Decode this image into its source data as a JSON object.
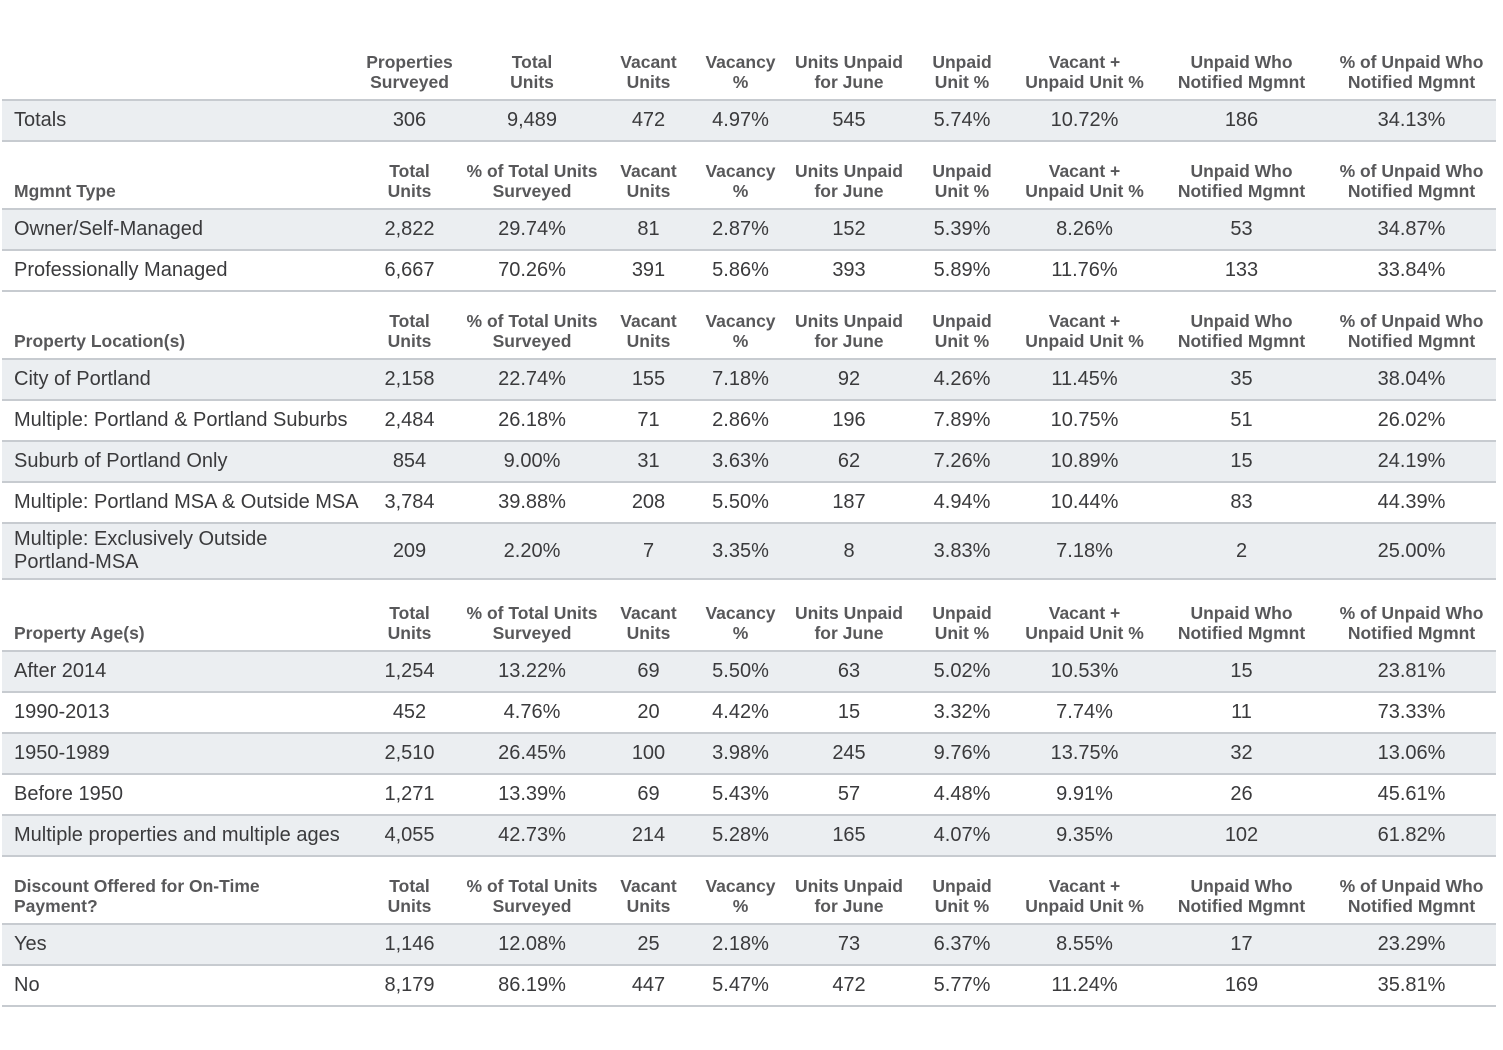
{
  "chart_data": {
    "type": "table",
    "sections": [
      {
        "label": "",
        "columns": [
          "Properties\nSurveyed",
          "Total\nUnits",
          "Vacant\nUnits",
          "Vacancy\n%",
          "Units Unpaid\nfor June",
          "Unpaid\nUnit %",
          "Vacant +\nUnpaid Unit %",
          "Unpaid Who\nNotified Mgmnt",
          "% of Unpaid Who\nNotified Mgmnt"
        ],
        "rows": [
          {
            "label": "Totals",
            "values": [
              "306",
              "9,489",
              "472",
              "4.97%",
              "545",
              "5.74%",
              "10.72%",
              "186",
              "34.13%"
            ]
          }
        ]
      },
      {
        "label": "Mgmnt Type",
        "columns": [
          "Total\nUnits",
          "% of Total Units\nSurveyed",
          "Vacant\nUnits",
          "Vacancy\n%",
          "Units Unpaid\nfor June",
          "Unpaid\nUnit %",
          "Vacant +\nUnpaid Unit %",
          "Unpaid Who\nNotified Mgmnt",
          "% of Unpaid Who\nNotified Mgmnt"
        ],
        "rows": [
          {
            "label": "Owner/Self-Managed",
            "values": [
              "2,822",
              "29.74%",
              "81",
              "2.87%",
              "152",
              "5.39%",
              "8.26%",
              "53",
              "34.87%"
            ]
          },
          {
            "label": "Professionally Managed",
            "values": [
              "6,667",
              "70.26%",
              "391",
              "5.86%",
              "393",
              "5.89%",
              "11.76%",
              "133",
              "33.84%"
            ]
          }
        ]
      },
      {
        "label": "Property Location(s)",
        "columns": [
          "Total\nUnits",
          "% of Total Units\nSurveyed",
          "Vacant\nUnits",
          "Vacancy\n%",
          "Units Unpaid\nfor June",
          "Unpaid\nUnit %",
          "Vacant +\nUnpaid Unit %",
          "Unpaid Who\nNotified Mgmnt",
          "% of Unpaid Who\nNotified Mgmnt"
        ],
        "rows": [
          {
            "label": "City of Portland",
            "values": [
              "2,158",
              "22.74%",
              "155",
              "7.18%",
              "92",
              "4.26%",
              "11.45%",
              "35",
              "38.04%"
            ]
          },
          {
            "label": "Multiple: Portland & Portland Suburbs",
            "values": [
              "2,484",
              "26.18%",
              "71",
              "2.86%",
              "196",
              "7.89%",
              "10.75%",
              "51",
              "26.02%"
            ]
          },
          {
            "label": "Suburb of Portland Only",
            "values": [
              "854",
              "9.00%",
              "31",
              "3.63%",
              "62",
              "7.26%",
              "10.89%",
              "15",
              "24.19%"
            ]
          },
          {
            "label": "Multiple: Portland MSA & Outside MSA",
            "values": [
              "3,784",
              "39.88%",
              "208",
              "5.50%",
              "187",
              "4.94%",
              "10.44%",
              "83",
              "44.39%"
            ]
          },
          {
            "label": "Multiple: Exclusively Outside\nPortland-MSA",
            "values": [
              "209",
              "2.20%",
              "7",
              "3.35%",
              "8",
              "3.83%",
              "7.18%",
              "2",
              "25.00%"
            ]
          }
        ]
      },
      {
        "label": "Property Age(s)",
        "columns": [
          "Total\nUnits",
          "% of Total Units\nSurveyed",
          "Vacant\nUnits",
          "Vacancy\n%",
          "Units Unpaid\nfor June",
          "Unpaid\nUnit %",
          "Vacant +\nUnpaid Unit %",
          "Unpaid Who\nNotified Mgmnt",
          "% of Unpaid Who\nNotified Mgmnt"
        ],
        "rows": [
          {
            "label": "After 2014",
            "values": [
              "1,254",
              "13.22%",
              "69",
              "5.50%",
              "63",
              "5.02%",
              "10.53%",
              "15",
              "23.81%"
            ]
          },
          {
            "label": "1990-2013",
            "values": [
              "452",
              "4.76%",
              "20",
              "4.42%",
              "15",
              "3.32%",
              "7.74%",
              "11",
              "73.33%"
            ]
          },
          {
            "label": "1950-1989",
            "values": [
              "2,510",
              "26.45%",
              "100",
              "3.98%",
              "245",
              "9.76%",
              "13.75%",
              "32",
              "13.06%"
            ]
          },
          {
            "label": "Before 1950",
            "values": [
              "1,271",
              "13.39%",
              "69",
              "5.43%",
              "57",
              "4.48%",
              "9.91%",
              "26",
              "45.61%"
            ]
          },
          {
            "label": "Multiple properties and multiple ages",
            "values": [
              "4,055",
              "42.73%",
              "214",
              "5.28%",
              "165",
              "4.07%",
              "9.35%",
              "102",
              "61.82%"
            ]
          }
        ]
      },
      {
        "label": "Discount Offered for On-Time\nPayment?",
        "columns": [
          "Total\nUnits",
          "% of Total Units\nSurveyed",
          "Vacant\nUnits",
          "Vacancy\n%",
          "Units Unpaid\nfor June",
          "Unpaid\nUnit %",
          "Vacant +\nUnpaid Unit %",
          "Unpaid Who\nNotified Mgmnt",
          "% of Unpaid Who\nNotified Mgmnt"
        ],
        "rows": [
          {
            "label": "Yes",
            "values": [
              "1,146",
              "12.08%",
              "25",
              "2.18%",
              "73",
              "6.37%",
              "8.55%",
              "17",
              "23.29%"
            ]
          },
          {
            "label": "No",
            "values": [
              "8,179",
              "86.19%",
              "447",
              "5.47%",
              "472",
              "5.77%",
              "11.24%",
              "169",
              "35.81%"
            ]
          }
        ]
      }
    ]
  }
}
